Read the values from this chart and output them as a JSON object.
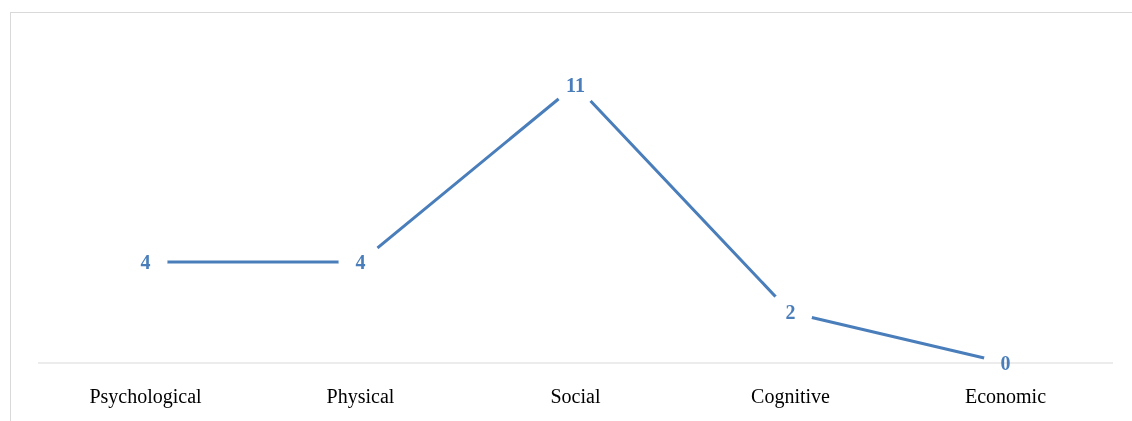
{
  "chart_data": {
    "type": "line",
    "categories": [
      "Psychological",
      "Physical",
      "Social",
      "Cognitive",
      "Economic"
    ],
    "series": [
      {
        "color": "#4a7ebb",
        "values": [
          4,
          4,
          11,
          2,
          0
        ]
      }
    ],
    "data_labels": true,
    "line_style": "solid"
  }
}
